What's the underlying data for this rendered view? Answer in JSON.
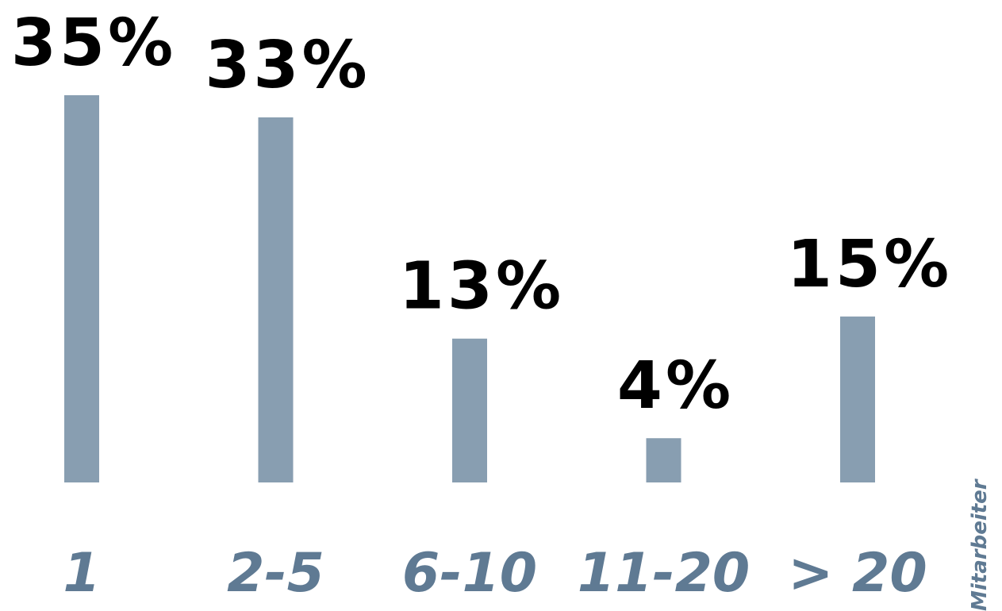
{
  "chart_data": {
    "type": "bar",
    "categories": [
      "1",
      "2-5",
      "6-10",
      "11-20",
      "> 20"
    ],
    "values": [
      35,
      33,
      13,
      4,
      15
    ],
    "value_labels": [
      "35%",
      "33%",
      "13%",
      "4%",
      "15%"
    ],
    "unit_label": "Mitarbeiter",
    "ylim": [
      0,
      35
    ],
    "grid": false,
    "colors": {
      "bar": "#889eb1",
      "category_text": "#5f7a93",
      "value_text": "#000000"
    }
  }
}
